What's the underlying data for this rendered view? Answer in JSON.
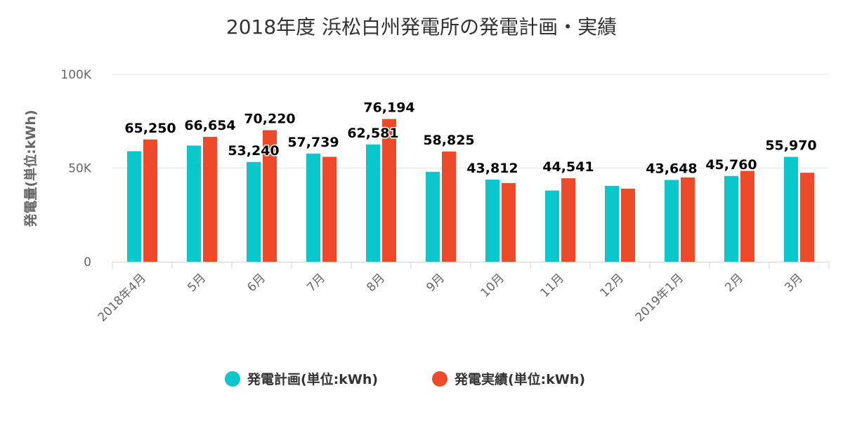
{
  "chart_data": {
    "type": "bar",
    "title": "2018年度 浜松白州発電所の発電計画・実績",
    "xlabel": "",
    "ylabel": "発電量(単位:kWh)",
    "ylim": [
      0,
      100000
    ],
    "yticks": [
      {
        "value": 0,
        "label": "0"
      },
      {
        "value": 50000,
        "label": "50K"
      },
      {
        "value": 100000,
        "label": "100K"
      }
    ],
    "grid": true,
    "legend_position": "bottom",
    "categories": [
      "2018年4月",
      "5月",
      "6月",
      "7月",
      "8月",
      "9月",
      "10月",
      "11月",
      "12月",
      "2019年1月",
      "2月",
      "3月"
    ],
    "series": [
      {
        "name": "発電計画(単位:kWh)",
        "color": "#0bc6ca",
        "values": [
          59000,
          62000,
          53240,
          57739,
          62581,
          48000,
          43812,
          38000,
          40500,
          43648,
          45760,
          55970
        ],
        "labels": [
          "",
          "",
          "53,240",
          "57,739",
          "62,581",
          "",
          "43,812",
          "",
          "",
          "43,648",
          "45,760",
          "55,970"
        ]
      },
      {
        "name": "発電実績(単位:kWh)",
        "color": "#ed4a2c",
        "values": [
          65250,
          66654,
          70220,
          56000,
          76194,
          58825,
          42000,
          44541,
          39000,
          45000,
          48500,
          47500
        ],
        "labels": [
          "65,250",
          "66,654",
          "70,220",
          "",
          "76,194",
          "58,825",
          "",
          "44,541",
          "",
          "",
          "",
          ""
        ]
      }
    ]
  }
}
